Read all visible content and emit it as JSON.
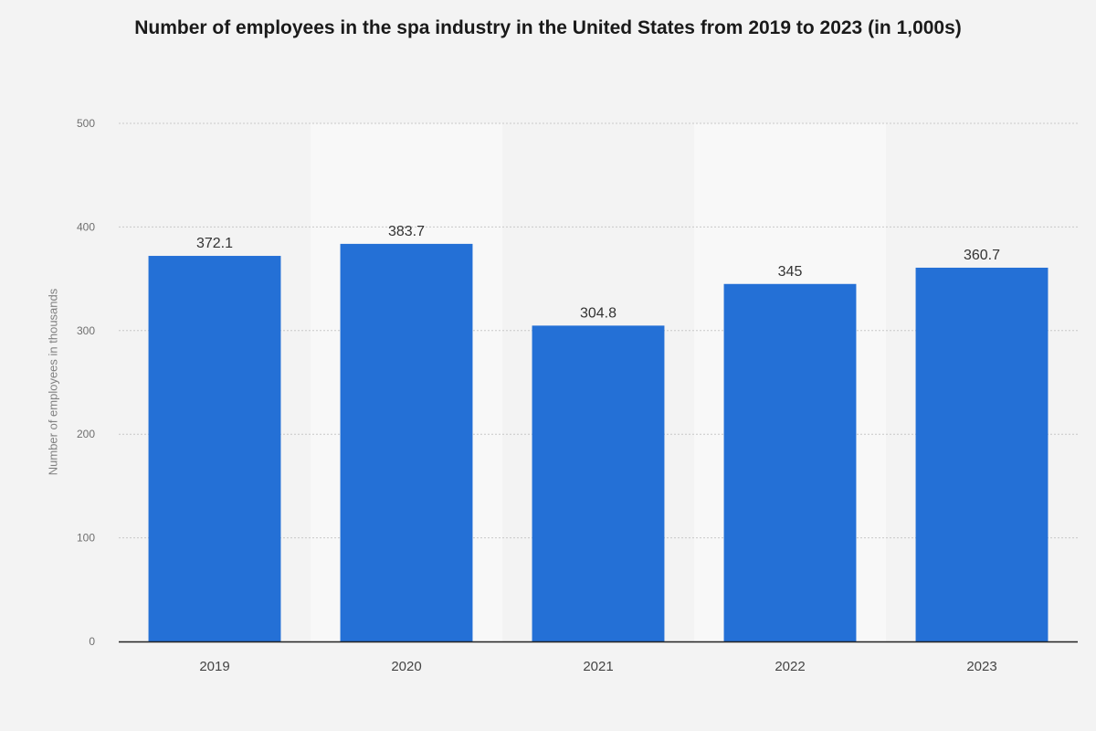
{
  "chart_data": {
    "type": "bar",
    "title": "Number of employees in the spa industry in the United States from 2019 to 2023 (in 1,000s)",
    "xlabel": "",
    "ylabel": "Number of employees in thousands",
    "categories": [
      "2019",
      "2020",
      "2021",
      "2022",
      "2023"
    ],
    "values": [
      372.1,
      383.7,
      304.8,
      345,
      360.7
    ],
    "value_labels": [
      "372.1",
      "383.7",
      "304.8",
      "345",
      "360.7"
    ],
    "ylim": [
      0,
      500
    ],
    "yticks": [
      0,
      100,
      200,
      300,
      400,
      500
    ],
    "grid": true,
    "legend": "none",
    "colors": {
      "bar": "#2470d6",
      "background": "#f3f3f3",
      "band": "#f8f8f8",
      "grid": "#c8c8c8",
      "axis": "#222222",
      "tick_label": "#6f6f6f",
      "value_label": "#333333"
    }
  }
}
